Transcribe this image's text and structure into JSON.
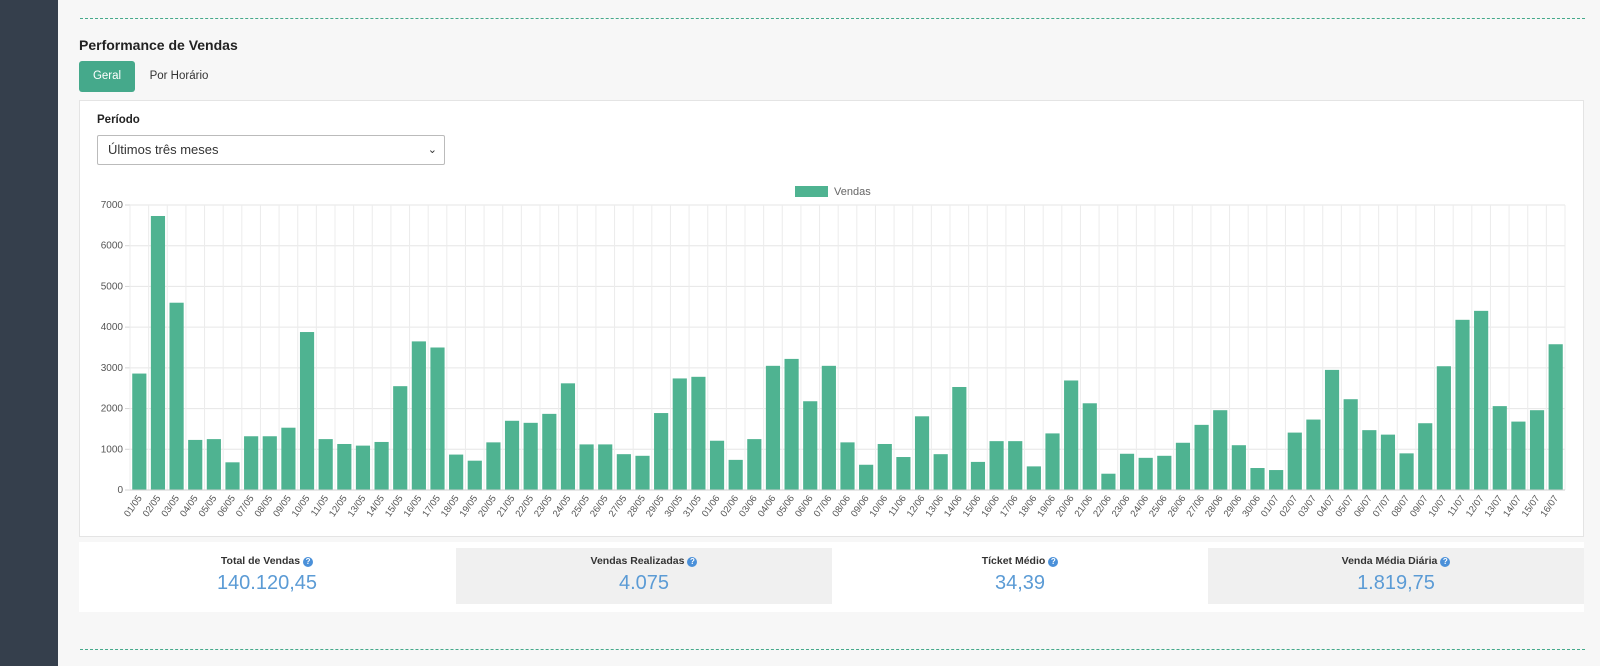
{
  "section_title": "Performance de Vendas",
  "tabs": [
    {
      "label": "Geral",
      "active": true
    },
    {
      "label": "Por Horário",
      "active": false
    }
  ],
  "period": {
    "label": "Período",
    "selected": "Últimos três meses"
  },
  "colors": {
    "accent": "#45a98b",
    "bar": "#4fb391",
    "sidebar": "#353f4c",
    "stat_value": "#5b9bd5"
  },
  "chart_data": {
    "type": "bar",
    "legend": [
      "Vendas"
    ],
    "legend_position": "top-center",
    "grid": true,
    "ylim": [
      0,
      7000
    ],
    "yticks": [
      0,
      1000,
      2000,
      3000,
      4000,
      5000,
      6000,
      7000
    ],
    "categories": [
      "01/05",
      "02/05",
      "03/05",
      "04/05",
      "05/05",
      "06/05",
      "07/05",
      "08/05",
      "09/05",
      "10/05",
      "11/05",
      "12/05",
      "13/05",
      "14/05",
      "15/05",
      "16/05",
      "17/05",
      "18/05",
      "19/05",
      "20/05",
      "21/05",
      "22/05",
      "23/05",
      "24/05",
      "25/05",
      "26/05",
      "27/05",
      "28/05",
      "29/05",
      "30/05",
      "31/05",
      "01/06",
      "02/06",
      "03/06",
      "04/06",
      "05/06",
      "06/06",
      "07/06",
      "08/06",
      "09/06",
      "10/06",
      "11/06",
      "12/06",
      "13/06",
      "14/06",
      "15/06",
      "16/06",
      "17/06",
      "18/06",
      "19/06",
      "20/06",
      "21/06",
      "22/06",
      "23/06",
      "24/06",
      "25/06",
      "26/06",
      "27/06",
      "28/06",
      "29/06",
      "30/06",
      "01/07",
      "02/07",
      "03/07",
      "04/07",
      "05/07",
      "06/07",
      "07/07",
      "08/07",
      "09/07",
      "10/07",
      "11/07",
      "12/07",
      "13/07",
      "14/07",
      "15/07",
      "16/07"
    ],
    "series": [
      {
        "name": "Vendas",
        "values": [
          2860,
          6730,
          4600,
          1230,
          1250,
          680,
          1320,
          1320,
          1530,
          3880,
          1250,
          1130,
          1090,
          1180,
          2550,
          3650,
          3500,
          870,
          720,
          1170,
          1700,
          1650,
          1870,
          2620,
          1120,
          1120,
          880,
          840,
          1890,
          2740,
          2780,
          1210,
          740,
          1250,
          3050,
          3220,
          2180,
          3050,
          1170,
          620,
          1130,
          810,
          1810,
          880,
          2530,
          690,
          1200,
          1200,
          580,
          1390,
          2690,
          2130,
          400,
          890,
          790,
          840,
          1160,
          1600,
          1960,
          1100,
          540,
          490,
          1410,
          1730,
          2950,
          2230,
          1470,
          1360,
          900,
          1640,
          3040,
          4180,
          4400,
          2060,
          1680,
          1960,
          3580
        ]
      }
    ]
  },
  "stats": [
    {
      "label": "Total de Vendas",
      "value": "140.120,45"
    },
    {
      "label": "Vendas Realizadas",
      "value": "4.075"
    },
    {
      "label": "Tícket Médio",
      "value": "34,39"
    },
    {
      "label": "Venda Média Diária",
      "value": "1.819,75"
    }
  ]
}
